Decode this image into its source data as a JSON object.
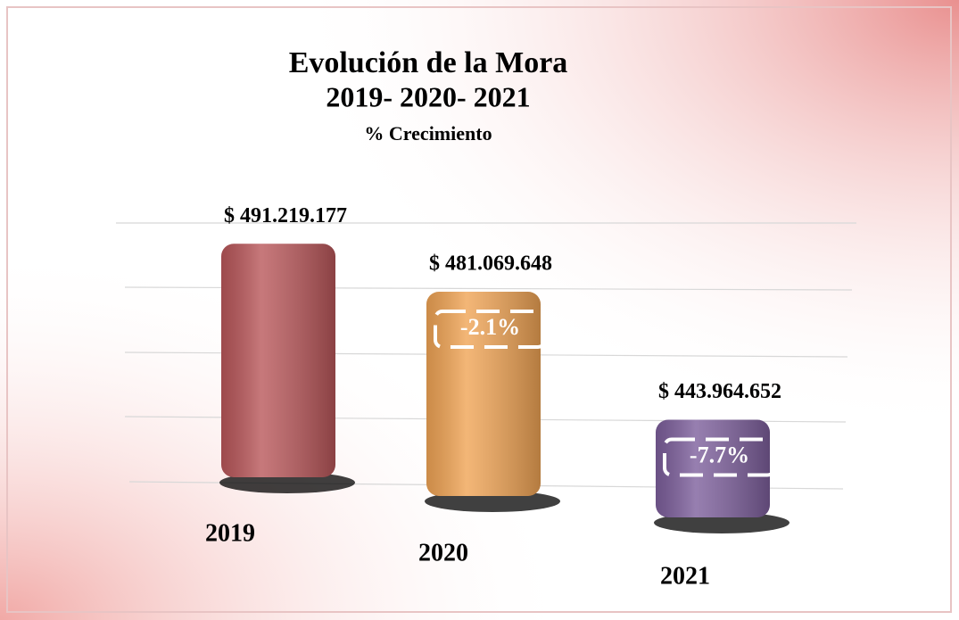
{
  "chart_data": {
    "type": "bar",
    "title": "Evolución de la Mora",
    "subtitle": "2019- 2020- 2021",
    "axis_note": "% Crecimiento",
    "categories": [
      "2019",
      "2020",
      "2021"
    ],
    "values": [
      491219177,
      481069648,
      443964652
    ],
    "value_labels": [
      "$ 491.219.177",
      "$ 481.069.648",
      "$ 443.964.652"
    ],
    "colors": [
      "#b9575a",
      "#f0a455",
      "#7d5f9c"
    ],
    "annotations": [
      "-2.1%",
      "-7.7%"
    ],
    "ylim": [
      410000000,
      500000000
    ]
  }
}
